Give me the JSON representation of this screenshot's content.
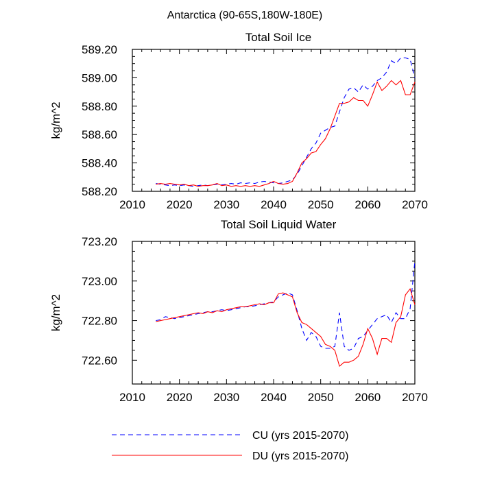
{
  "figure_title": "Antarctica (90-65S,180W-180E)",
  "legend": [
    {
      "label": "CU (yrs 2015-2070)",
      "color": "#0000ff",
      "dash": true
    },
    {
      "label": "DU (yrs 2015-2070)",
      "color": "#ff0000",
      "dash": false
    }
  ],
  "chart_data": [
    {
      "type": "line",
      "title": "Total Soil Ice",
      "xlabel": "",
      "ylabel": "kg/m^2",
      "xlim": [
        2010,
        2070
      ],
      "ylim": [
        588.2,
        589.2
      ],
      "x_ticks": [
        2010,
        2020,
        2030,
        2040,
        2050,
        2060,
        2070
      ],
      "y_ticks": [
        588.2,
        588.4,
        588.6,
        588.8,
        589.0,
        589.2
      ],
      "x_tick_labels": [
        "2010",
        "2020",
        "2030",
        "2040",
        "2050",
        "2060",
        "2070"
      ],
      "y_tick_labels": [
        "588.20",
        "588.40",
        "588.60",
        "588.80",
        "589.00",
        "589.20"
      ],
      "x": [
        2015,
        2016,
        2017,
        2018,
        2019,
        2020,
        2021,
        2022,
        2023,
        2024,
        2025,
        2026,
        2027,
        2028,
        2029,
        2030,
        2031,
        2032,
        2033,
        2034,
        2035,
        2036,
        2037,
        2038,
        2039,
        2040,
        2041,
        2042,
        2043,
        2044,
        2045,
        2046,
        2047,
        2048,
        2049,
        2050,
        2051,
        2052,
        2053,
        2054,
        2055,
        2056,
        2057,
        2058,
        2059,
        2060,
        2061,
        2062,
        2063,
        2064,
        2065,
        2066,
        2067,
        2068,
        2069,
        2070
      ],
      "series": [
        {
          "name": "CU",
          "color": "#0000ff",
          "dash": true,
          "values": [
            588.255,
            588.25,
            588.245,
            588.24,
            588.245,
            588.24,
            588.245,
            588.24,
            588.235,
            588.24,
            588.245,
            588.24,
            588.245,
            588.25,
            588.245,
            588.25,
            588.255,
            588.25,
            588.26,
            588.255,
            588.26,
            588.255,
            588.265,
            588.27,
            588.265,
            588.26,
            588.255,
            588.26,
            588.27,
            588.28,
            588.32,
            588.38,
            588.44,
            588.5,
            588.54,
            588.61,
            588.63,
            588.65,
            588.66,
            588.76,
            588.86,
            588.92,
            588.93,
            588.9,
            588.95,
            588.92,
            588.94,
            588.98,
            589.0,
            589.04,
            589.12,
            589.1,
            589.14,
            589.14,
            589.13,
            589.0
          ]
        },
        {
          "name": "DU",
          "color": "#ff0000",
          "dash": false,
          "values": [
            588.25,
            588.255,
            588.25,
            588.255,
            588.25,
            588.245,
            588.25,
            588.24,
            588.245,
            588.235,
            588.24,
            588.24,
            588.245,
            588.255,
            588.24,
            588.245,
            588.235,
            588.24,
            588.235,
            588.24,
            588.235,
            588.24,
            588.235,
            588.245,
            588.255,
            588.27,
            588.255,
            588.25,
            588.255,
            588.27,
            588.33,
            588.4,
            588.43,
            588.47,
            588.48,
            588.53,
            588.57,
            588.64,
            588.73,
            588.82,
            588.82,
            588.83,
            588.86,
            588.84,
            588.84,
            588.8,
            588.88,
            588.97,
            588.91,
            588.94,
            588.98,
            588.95,
            588.98,
            588.88,
            588.88,
            588.97
          ]
        }
      ]
    },
    {
      "type": "line",
      "title": "Total Soil Liquid Water",
      "xlabel": "",
      "ylabel": "kg/m^2",
      "xlim": [
        2010,
        2070
      ],
      "ylim": [
        722.48,
        723.2
      ],
      "x_ticks": [
        2010,
        2020,
        2030,
        2040,
        2050,
        2060,
        2070
      ],
      "y_ticks": [
        722.6,
        722.8,
        723.0,
        723.2
      ],
      "x_tick_labels": [
        "2010",
        "2020",
        "2030",
        "2040",
        "2050",
        "2060",
        "2070"
      ],
      "y_tick_labels": [
        "722.60",
        "722.80",
        "723.00",
        "723.20"
      ],
      "x": [
        2015,
        2016,
        2017,
        2018,
        2019,
        2020,
        2021,
        2022,
        2023,
        2024,
        2025,
        2026,
        2027,
        2028,
        2029,
        2030,
        2031,
        2032,
        2033,
        2034,
        2035,
        2036,
        2037,
        2038,
        2039,
        2040,
        2041,
        2042,
        2043,
        2044,
        2045,
        2046,
        2047,
        2048,
        2049,
        2050,
        2051,
        2052,
        2053,
        2054,
        2055,
        2056,
        2057,
        2058,
        2059,
        2060,
        2061,
        2062,
        2063,
        2064,
        2065,
        2066,
        2067,
        2068,
        2069,
        2070
      ],
      "series": [
        {
          "name": "CU",
          "color": "#0000ff",
          "dash": true,
          "values": [
            722.8,
            722.805,
            722.82,
            722.815,
            722.81,
            722.815,
            722.82,
            722.825,
            722.83,
            722.835,
            722.84,
            722.845,
            722.845,
            722.85,
            722.855,
            722.85,
            722.855,
            722.86,
            722.865,
            722.87,
            722.87,
            722.875,
            722.88,
            722.885,
            722.89,
            722.895,
            722.92,
            722.93,
            722.94,
            722.93,
            722.85,
            722.76,
            722.7,
            722.74,
            722.72,
            722.67,
            722.66,
            722.66,
            722.67,
            722.84,
            722.67,
            722.65,
            722.66,
            722.71,
            722.72,
            722.75,
            722.78,
            722.81,
            722.82,
            722.83,
            722.79,
            722.84,
            722.81,
            722.81,
            722.86,
            723.1
          ]
        },
        {
          "name": "DU",
          "color": "#ff0000",
          "dash": false,
          "values": [
            722.795,
            722.8,
            722.805,
            722.81,
            722.815,
            722.82,
            722.825,
            722.83,
            722.835,
            722.84,
            722.835,
            722.845,
            722.84,
            722.85,
            722.845,
            722.855,
            722.86,
            722.865,
            722.87,
            722.87,
            722.875,
            722.88,
            722.885,
            722.88,
            722.89,
            722.89,
            722.935,
            722.94,
            722.93,
            722.92,
            722.84,
            722.79,
            722.78,
            722.76,
            722.74,
            722.72,
            722.68,
            722.67,
            722.65,
            722.57,
            722.59,
            722.59,
            722.6,
            722.62,
            722.68,
            722.76,
            722.71,
            722.63,
            722.71,
            722.71,
            722.69,
            722.79,
            722.82,
            722.93,
            722.96,
            722.88
          ]
        }
      ]
    }
  ]
}
